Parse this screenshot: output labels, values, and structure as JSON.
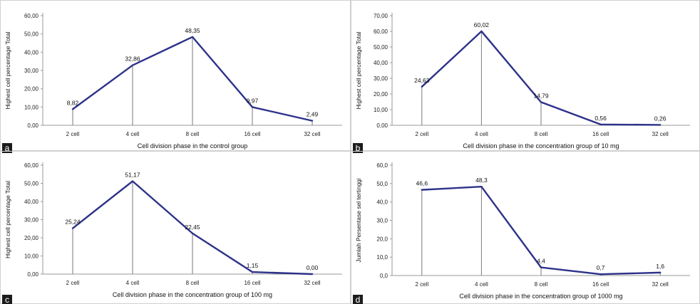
{
  "colors": {
    "line": "#2d3289",
    "axis": "#9a9a9a",
    "drop": "#7a7a7a",
    "label_bg": "#1c1c1c"
  },
  "chart_data": [
    {
      "panel_label": "a",
      "type": "line",
      "categories": [
        "2 cell",
        "4 cell",
        "8 cell",
        "16 cell",
        "32 cell"
      ],
      "values": [
        8.82,
        32.86,
        48.35,
        9.97,
        2.49
      ],
      "data_labels": [
        "8,82",
        "32,86",
        "48,35",
        "9,97",
        "2,49"
      ],
      "xlabel": "Cell division phase in the control group",
      "ylabel": "Highest cell percentage Total",
      "ylim": [
        0,
        60
      ],
      "yticks": [
        "0,00",
        "10,00",
        "20,00",
        "30,00",
        "40,00",
        "50,00",
        "60,00"
      ],
      "drop_lines": true,
      "grid": false
    },
    {
      "panel_label": "b",
      "type": "line",
      "categories": [
        "2 cell",
        "4 cell",
        "8 cell",
        "16 cell",
        "32 cell"
      ],
      "values": [
        24.63,
        60.02,
        14.79,
        0.56,
        0.26
      ],
      "data_labels": [
        "24,63",
        "60,02",
        "14,79",
        "0,56",
        "0,26"
      ],
      "xlabel": "Cell division phase in the concentration group of 10 mg",
      "ylabel": "Highest cell percentage Total",
      "ylim": [
        0,
        70
      ],
      "yticks": [
        "0,00",
        "10,00",
        "20,00",
        "30,00",
        "40,00",
        "50,00",
        "60,00",
        "70,00"
      ],
      "drop_lines": true,
      "grid": false
    },
    {
      "panel_label": "c",
      "type": "line",
      "categories": [
        "2 cell",
        "4 cell",
        "8 cell",
        "16 cell",
        "32 cell"
      ],
      "values": [
        25.24,
        51.17,
        22.45,
        1.15,
        0.0
      ],
      "data_labels": [
        "25,24",
        "51,17",
        "22,45",
        "1,15",
        "0,00"
      ],
      "xlabel": "Cell division phase in the concentration group of 100 mg",
      "ylabel": "Highest cell percentage Total",
      "ylim": [
        0,
        60
      ],
      "yticks": [
        "0,00",
        "10,00",
        "20,00",
        "30,00",
        "40,00",
        "50,00",
        "60,00"
      ],
      "drop_lines": true,
      "grid": false
    },
    {
      "panel_label": "d",
      "type": "line",
      "categories": [
        "2 cell",
        "4 cell",
        "8 cell",
        "16 cell",
        "32 cell"
      ],
      "values": [
        46.6,
        48.3,
        4.4,
        0.7,
        1.6
      ],
      "data_labels": [
        "46,6",
        "48,3",
        "4,4",
        "0,7",
        "1,6"
      ],
      "xlabel": "Cell division phase in the concentration group of 1000 mg",
      "ylabel": "Jumlah Persentase sel tertinggi",
      "ylim": [
        0,
        60
      ],
      "yticks": [
        "0,0",
        "10,0",
        "20,0",
        "30,0",
        "40,0",
        "50,0",
        "60,0"
      ],
      "drop_lines": true,
      "grid": false
    }
  ]
}
